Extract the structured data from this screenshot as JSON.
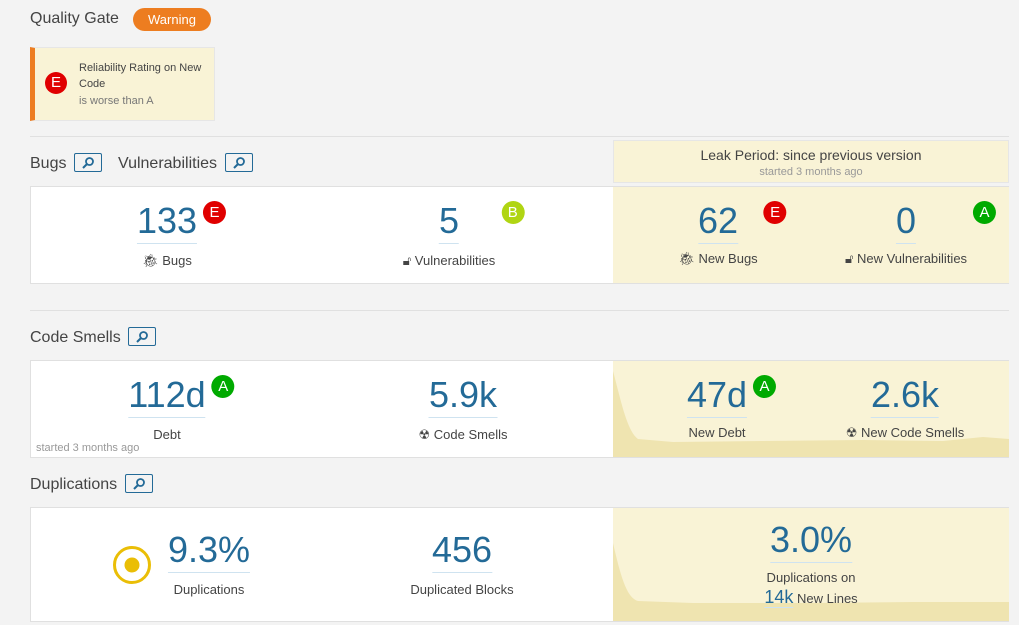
{
  "quality_gate": {
    "title": "Quality Gate",
    "status": "Warning",
    "status_color": "#ed7d20",
    "condition": {
      "rating": "E",
      "metric": "Reliability Rating on New Code",
      "op": "is worse than A"
    }
  },
  "colors": {
    "rating_A": "#00aa00",
    "rating_B": "#b0d513",
    "rating_E": "#e00000",
    "value": "#236a97",
    "leak_bg": "#f9f3d6"
  },
  "leak": {
    "title": "Leak Period: since previous version",
    "started": "started 3 months ago"
  },
  "bugs_section": {
    "bugs_title": "Bugs",
    "vuln_title": "Vulnerabilities",
    "bugs": {
      "value": "133",
      "rating": "E",
      "label": "Bugs",
      "icon": "bug-icon"
    },
    "vulns": {
      "value": "5",
      "rating": "B",
      "label": "Vulnerabilities",
      "icon": "lock-icon"
    },
    "new_bugs": {
      "value": "62",
      "rating": "E",
      "label": "New Bugs"
    },
    "new_vulns": {
      "value": "0",
      "rating": "A",
      "label": "New Vulnerabilities"
    }
  },
  "smells_section": {
    "title": "Code Smells",
    "debt": {
      "value": "112d",
      "rating": "A",
      "label": "Debt"
    },
    "smells": {
      "value": "5.9k",
      "label": "Code Smells",
      "icon": "radiation-icon"
    },
    "started": "started 3 months ago",
    "new_debt": {
      "value": "47d",
      "rating": "A",
      "label": "New Debt"
    },
    "new_smells": {
      "value": "2.6k",
      "label": "New Code Smells"
    }
  },
  "dup_section": {
    "title": "Duplications",
    "dup": {
      "value": "9.3%",
      "label": "Duplications"
    },
    "blocks": {
      "value": "456",
      "label": "Duplicated Blocks"
    },
    "new_dup": {
      "value": "3.0%",
      "label": "Duplications on",
      "lines_value": "14k",
      "lines_label": "New Lines"
    }
  }
}
